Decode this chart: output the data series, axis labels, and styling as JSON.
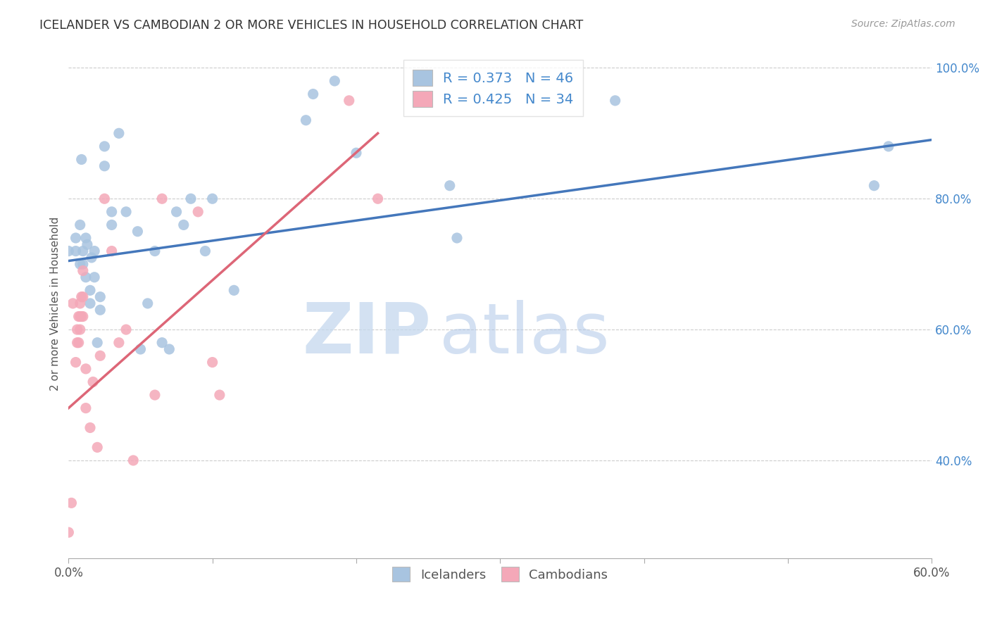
{
  "title": "ICELANDER VS CAMBODIAN 2 OR MORE VEHICLES IN HOUSEHOLD CORRELATION CHART",
  "source": "Source: ZipAtlas.com",
  "ylabel": "2 or more Vehicles in Household",
  "xmin": 0.0,
  "xmax": 0.6,
  "ymin": 0.25,
  "ymax": 1.03,
  "x_ticks": [
    0.0,
    0.1,
    0.2,
    0.3,
    0.4,
    0.5,
    0.6
  ],
  "x_tick_labels": [
    "0.0%",
    "",
    "",
    "",
    "",
    "",
    "60.0%"
  ],
  "y_ticks_right": [
    0.4,
    0.6,
    0.8,
    1.0
  ],
  "y_tick_labels_right": [
    "40.0%",
    "60.0%",
    "80.0%",
    "100.0%"
  ],
  "icelander_color": "#a8c4e0",
  "cambodian_color": "#f4a8b8",
  "trendline_blue": "#4477bb",
  "trendline_pink": "#dd6677",
  "watermark_zip": "ZIP",
  "watermark_atlas": "atlas",
  "icelanders_x": [
    0.0,
    0.005,
    0.005,
    0.008,
    0.008,
    0.009,
    0.01,
    0.01,
    0.012,
    0.012,
    0.013,
    0.015,
    0.015,
    0.016,
    0.018,
    0.018,
    0.02,
    0.022,
    0.022,
    0.025,
    0.025,
    0.03,
    0.03,
    0.035,
    0.04,
    0.048,
    0.05,
    0.055,
    0.06,
    0.065,
    0.07,
    0.075,
    0.08,
    0.085,
    0.095,
    0.1,
    0.115,
    0.165,
    0.17,
    0.185,
    0.2,
    0.265,
    0.27,
    0.38,
    0.56,
    0.57
  ],
  "icelanders_y": [
    0.72,
    0.72,
    0.74,
    0.7,
    0.76,
    0.86,
    0.7,
    0.72,
    0.68,
    0.74,
    0.73,
    0.64,
    0.66,
    0.71,
    0.68,
    0.72,
    0.58,
    0.63,
    0.65,
    0.85,
    0.88,
    0.76,
    0.78,
    0.9,
    0.78,
    0.75,
    0.57,
    0.64,
    0.72,
    0.58,
    0.57,
    0.78,
    0.76,
    0.8,
    0.72,
    0.8,
    0.66,
    0.92,
    0.96,
    0.98,
    0.87,
    0.82,
    0.74,
    0.95,
    0.82,
    0.88
  ],
  "cambodians_x": [
    0.0,
    0.002,
    0.003,
    0.005,
    0.006,
    0.006,
    0.007,
    0.007,
    0.008,
    0.008,
    0.008,
    0.009,
    0.009,
    0.01,
    0.01,
    0.01,
    0.012,
    0.012,
    0.015,
    0.017,
    0.02,
    0.022,
    0.025,
    0.03,
    0.035,
    0.04,
    0.045,
    0.06,
    0.065,
    0.09,
    0.1,
    0.105,
    0.195,
    0.215
  ],
  "cambodians_y": [
    0.29,
    0.335,
    0.64,
    0.55,
    0.58,
    0.6,
    0.58,
    0.62,
    0.6,
    0.62,
    0.64,
    0.62,
    0.65,
    0.62,
    0.65,
    0.69,
    0.48,
    0.54,
    0.45,
    0.52,
    0.42,
    0.56,
    0.8,
    0.72,
    0.58,
    0.6,
    0.4,
    0.5,
    0.8,
    0.78,
    0.55,
    0.5,
    0.95,
    0.8
  ],
  "blue_trend_x0": 0.0,
  "blue_trend_y0": 0.705,
  "blue_trend_x1": 0.6,
  "blue_trend_y1": 0.89,
  "pink_trend_x0": 0.0,
  "pink_trend_y0": 0.48,
  "pink_trend_x1": 0.215,
  "pink_trend_y1": 0.9
}
